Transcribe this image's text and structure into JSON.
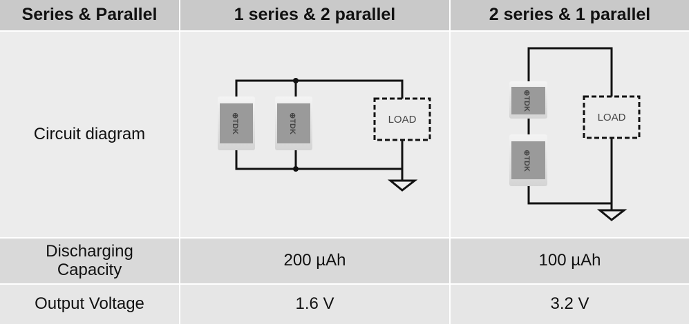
{
  "table": {
    "header": [
      "Series & Parallel",
      "1 series & 2 parallel",
      "2 series & 1 parallel"
    ],
    "rows": [
      [
        "Circuit diagram"
      ],
      [
        "Discharging Capacity",
        "200 µAh",
        "100 µAh"
      ],
      [
        "Output Voltage",
        "1.6 V",
        "3.2 V"
      ]
    ]
  },
  "diagrams": [
    {
      "load": "LOAD",
      "cells": [
        "⊕TDK",
        "⊕TDK"
      ]
    },
    {
      "load": "LOAD",
      "cells": [
        "⊕TDK",
        "⊕TDK"
      ]
    }
  ]
}
